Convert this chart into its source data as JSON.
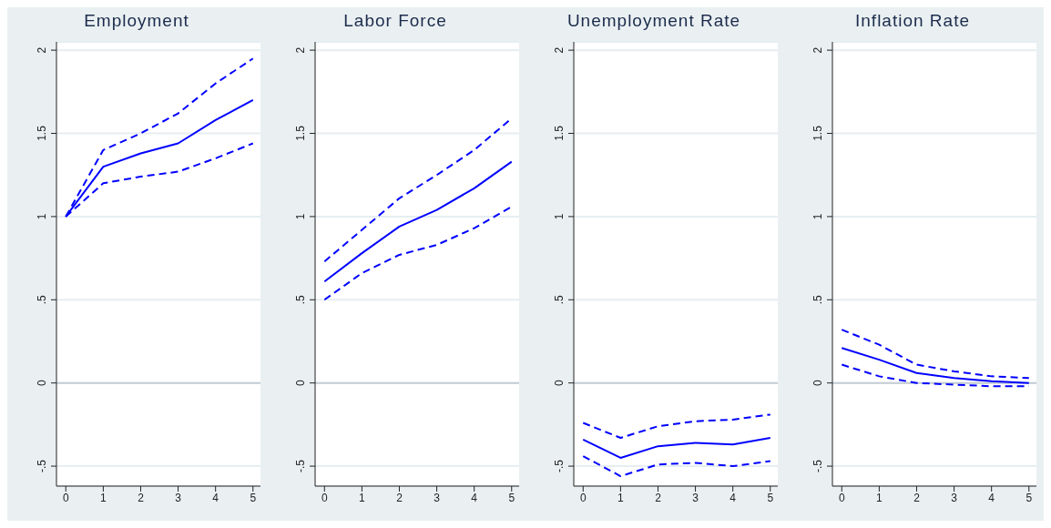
{
  "chart_data": [
    {
      "type": "line",
      "title": "Employment",
      "x": [
        0,
        1,
        2,
        3,
        4,
        5
      ],
      "xlim": [
        -0.25,
        5.2
      ],
      "xticks": [
        0,
        1,
        2,
        3,
        4,
        5
      ],
      "ylim": [
        -0.62,
        2.05
      ],
      "yticks": [
        {
          "value": -0.5,
          "label": "-.5"
        },
        0,
        {
          "value": 0.5,
          "label": ".5"
        },
        1,
        {
          "value": 1.5,
          "label": "1.5"
        },
        2
      ],
      "grid": "y",
      "marker": "none",
      "ref_lines": [
        {
          "axis": "y",
          "value": 0,
          "color": "#c4ccd4"
        }
      ],
      "series": [
        {
          "color": "#0000ff",
          "line_style": "solid",
          "values": [
            1.0,
            1.3,
            1.38,
            1.44,
            1.58,
            1.7
          ]
        },
        {
          "color": "#0000ff",
          "line_style": "dashed",
          "values": [
            1.0,
            1.4,
            1.5,
            1.62,
            1.8,
            1.95
          ]
        },
        {
          "color": "#0000ff",
          "line_style": "dashed",
          "values": [
            1.0,
            1.2,
            1.24,
            1.27,
            1.35,
            1.44
          ]
        }
      ]
    },
    {
      "type": "line",
      "title": "Labor Force",
      "x": [
        0,
        1,
        2,
        3,
        4,
        5
      ],
      "xlim": [
        -0.25,
        5.2
      ],
      "xticks": [
        0,
        1,
        2,
        3,
        4,
        5
      ],
      "ylim": [
        -0.62,
        2.05
      ],
      "yticks": [
        {
          "value": -0.5,
          "label": "-.5"
        },
        0,
        {
          "value": 0.5,
          "label": ".5"
        },
        1,
        {
          "value": 1.5,
          "label": "1.5"
        },
        2
      ],
      "grid": "y",
      "marker": "none",
      "ref_lines": [
        {
          "axis": "y",
          "value": 0,
          "color": "#c4ccd4"
        }
      ],
      "series": [
        {
          "color": "#0000ff",
          "line_style": "solid",
          "values": [
            0.61,
            0.78,
            0.94,
            1.04,
            1.17,
            1.33
          ]
        },
        {
          "color": "#0000ff",
          "line_style": "dashed",
          "values": [
            0.73,
            0.92,
            1.11,
            1.25,
            1.4,
            1.59
          ]
        },
        {
          "color": "#0000ff",
          "line_style": "dashed",
          "values": [
            0.5,
            0.66,
            0.77,
            0.83,
            0.93,
            1.06
          ]
        }
      ]
    },
    {
      "type": "line",
      "title": "Unemployment Rate",
      "x": [
        0,
        1,
        2,
        3,
        4,
        5
      ],
      "xlim": [
        -0.25,
        5.2
      ],
      "xticks": [
        0,
        1,
        2,
        3,
        4,
        5
      ],
      "ylim": [
        -0.62,
        2.05
      ],
      "yticks": [
        {
          "value": -0.5,
          "label": "-.5"
        },
        0,
        {
          "value": 0.5,
          "label": ".5"
        },
        1,
        {
          "value": 1.5,
          "label": "1.5"
        },
        2
      ],
      "grid": "y",
      "marker": "none",
      "ref_lines": [
        {
          "axis": "y",
          "value": 0,
          "color": "#c4ccd4"
        }
      ],
      "series": [
        {
          "color": "#0000ff",
          "line_style": "solid",
          "values": [
            -0.34,
            -0.45,
            -0.38,
            -0.36,
            -0.37,
            -0.33
          ]
        },
        {
          "color": "#0000ff",
          "line_style": "dashed",
          "values": [
            -0.24,
            -0.33,
            -0.26,
            -0.23,
            -0.22,
            -0.19
          ]
        },
        {
          "color": "#0000ff",
          "line_style": "dashed",
          "values": [
            -0.44,
            -0.56,
            -0.49,
            -0.48,
            -0.5,
            -0.47
          ]
        }
      ]
    },
    {
      "type": "line",
      "title": "Inflation Rate",
      "x": [
        0,
        1,
        2,
        3,
        4,
        5
      ],
      "xlim": [
        -0.25,
        5.2
      ],
      "xticks": [
        0,
        1,
        2,
        3,
        4,
        5
      ],
      "ylim": [
        -0.62,
        2.05
      ],
      "yticks": [
        {
          "value": -0.5,
          "label": "-.5"
        },
        0,
        {
          "value": 0.5,
          "label": ".5"
        },
        1,
        {
          "value": 1.5,
          "label": "1.5"
        },
        2
      ],
      "grid": "y",
      "marker": "none",
      "ref_lines": [
        {
          "axis": "y",
          "value": 0,
          "color": "#c4ccd4"
        }
      ],
      "series": [
        {
          "color": "#0000ff",
          "line_style": "solid",
          "values": [
            0.21,
            0.14,
            0.06,
            0.03,
            0.01,
            0.0
          ]
        },
        {
          "color": "#0000ff",
          "line_style": "dashed",
          "values": [
            0.32,
            0.23,
            0.11,
            0.07,
            0.04,
            0.03
          ]
        },
        {
          "color": "#0000ff",
          "line_style": "dashed",
          "values": [
            0.11,
            0.04,
            0.0,
            -0.01,
            -0.02,
            -0.02
          ]
        }
      ]
    }
  ]
}
